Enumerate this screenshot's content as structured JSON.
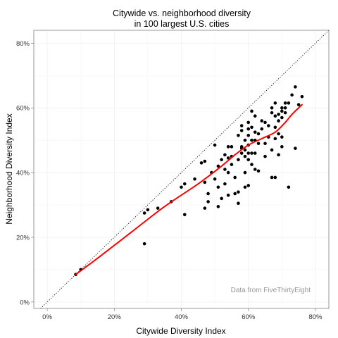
{
  "chart_data": {
    "type": "scatter",
    "title": "Citywide vs. neighborhood diversity",
    "subtitle": "in 100 largest U.S. cities",
    "xlabel": "Citywide Diversity Index",
    "ylabel": "Neighborhood Diversity Index",
    "xlim": [
      -0.04,
      0.84
    ],
    "ylim": [
      -0.02,
      0.84
    ],
    "x_ticks": [
      0,
      0.2,
      0.4,
      0.6,
      0.8
    ],
    "y_ticks": [
      0,
      0.2,
      0.4,
      0.6,
      0.8
    ],
    "x_tick_labels": [
      "0%",
      "20%",
      "40%",
      "60%",
      "80%"
    ],
    "y_tick_labels": [
      "0%",
      "20%",
      "40%",
      "60%",
      "80%"
    ],
    "grid": true,
    "annotation": "Data from FiveThirtyEight",
    "reference_line": {
      "style": "dotted",
      "slope": 1,
      "intercept": 0
    },
    "colors": {
      "points": "#000000",
      "smooth": "#ff0000",
      "reference": "#000000",
      "grid": "#ebebeb",
      "border": "#7f7f7f",
      "annotation": "#999999"
    },
    "points": [
      {
        "x": 0.085,
        "y": 0.085
      },
      {
        "x": 0.1,
        "y": 0.1
      },
      {
        "x": 0.29,
        "y": 0.18
      },
      {
        "x": 0.29,
        "y": 0.275
      },
      {
        "x": 0.3,
        "y": 0.285
      },
      {
        "x": 0.33,
        "y": 0.29
      },
      {
        "x": 0.37,
        "y": 0.31
      },
      {
        "x": 0.4,
        "y": 0.355
      },
      {
        "x": 0.41,
        "y": 0.365
      },
      {
        "x": 0.41,
        "y": 0.27
      },
      {
        "x": 0.44,
        "y": 0.38
      },
      {
        "x": 0.46,
        "y": 0.43
      },
      {
        "x": 0.47,
        "y": 0.435
      },
      {
        "x": 0.47,
        "y": 0.37
      },
      {
        "x": 0.47,
        "y": 0.29
      },
      {
        "x": 0.48,
        "y": 0.31
      },
      {
        "x": 0.48,
        "y": 0.335
      },
      {
        "x": 0.49,
        "y": 0.4
      },
      {
        "x": 0.5,
        "y": 0.485
      },
      {
        "x": 0.5,
        "y": 0.38
      },
      {
        "x": 0.51,
        "y": 0.42
      },
      {
        "x": 0.51,
        "y": 0.355
      },
      {
        "x": 0.51,
        "y": 0.295
      },
      {
        "x": 0.52,
        "y": 0.44
      },
      {
        "x": 0.52,
        "y": 0.32
      },
      {
        "x": 0.53,
        "y": 0.455
      },
      {
        "x": 0.53,
        "y": 0.41
      },
      {
        "x": 0.53,
        "y": 0.365
      },
      {
        "x": 0.54,
        "y": 0.48
      },
      {
        "x": 0.54,
        "y": 0.445
      },
      {
        "x": 0.54,
        "y": 0.4
      },
      {
        "x": 0.54,
        "y": 0.33
      },
      {
        "x": 0.55,
        "y": 0.48
      },
      {
        "x": 0.55,
        "y": 0.45
      },
      {
        "x": 0.55,
        "y": 0.425
      },
      {
        "x": 0.56,
        "y": 0.385
      },
      {
        "x": 0.56,
        "y": 0.335
      },
      {
        "x": 0.57,
        "y": 0.515
      },
      {
        "x": 0.57,
        "y": 0.44
      },
      {
        "x": 0.57,
        "y": 0.34
      },
      {
        "x": 0.57,
        "y": 0.305
      },
      {
        "x": 0.58,
        "y": 0.545
      },
      {
        "x": 0.58,
        "y": 0.53
      },
      {
        "x": 0.58,
        "y": 0.48
      },
      {
        "x": 0.58,
        "y": 0.475
      },
      {
        "x": 0.58,
        "y": 0.46
      },
      {
        "x": 0.59,
        "y": 0.5
      },
      {
        "x": 0.59,
        "y": 0.47
      },
      {
        "x": 0.59,
        "y": 0.45
      },
      {
        "x": 0.59,
        "y": 0.4
      },
      {
        "x": 0.59,
        "y": 0.355
      },
      {
        "x": 0.6,
        "y": 0.555
      },
      {
        "x": 0.6,
        "y": 0.535
      },
      {
        "x": 0.6,
        "y": 0.515
      },
      {
        "x": 0.6,
        "y": 0.485
      },
      {
        "x": 0.6,
        "y": 0.46
      },
      {
        "x": 0.6,
        "y": 0.44
      },
      {
        "x": 0.6,
        "y": 0.36
      },
      {
        "x": 0.61,
        "y": 0.59
      },
      {
        "x": 0.61,
        "y": 0.54
      },
      {
        "x": 0.61,
        "y": 0.5
      },
      {
        "x": 0.61,
        "y": 0.46
      },
      {
        "x": 0.61,
        "y": 0.425
      },
      {
        "x": 0.62,
        "y": 0.575
      },
      {
        "x": 0.62,
        "y": 0.525
      },
      {
        "x": 0.62,
        "y": 0.5
      },
      {
        "x": 0.62,
        "y": 0.46
      },
      {
        "x": 0.62,
        "y": 0.41
      },
      {
        "x": 0.63,
        "y": 0.52
      },
      {
        "x": 0.63,
        "y": 0.49
      },
      {
        "x": 0.63,
        "y": 0.405
      },
      {
        "x": 0.64,
        "y": 0.56
      },
      {
        "x": 0.64,
        "y": 0.535
      },
      {
        "x": 0.65,
        "y": 0.555
      },
      {
        "x": 0.65,
        "y": 0.49
      },
      {
        "x": 0.65,
        "y": 0.45
      },
      {
        "x": 0.66,
        "y": 0.545
      },
      {
        "x": 0.66,
        "y": 0.51
      },
      {
        "x": 0.67,
        "y": 0.6
      },
      {
        "x": 0.67,
        "y": 0.585
      },
      {
        "x": 0.67,
        "y": 0.47
      },
      {
        "x": 0.67,
        "y": 0.385
      },
      {
        "x": 0.68,
        "y": 0.615
      },
      {
        "x": 0.68,
        "y": 0.575
      },
      {
        "x": 0.68,
        "y": 0.54
      },
      {
        "x": 0.68,
        "y": 0.505
      },
      {
        "x": 0.68,
        "y": 0.385
      },
      {
        "x": 0.69,
        "y": 0.58
      },
      {
        "x": 0.69,
        "y": 0.56
      },
      {
        "x": 0.69,
        "y": 0.52
      },
      {
        "x": 0.69,
        "y": 0.455
      },
      {
        "x": 0.7,
        "y": 0.6
      },
      {
        "x": 0.7,
        "y": 0.59
      },
      {
        "x": 0.7,
        "y": 0.57
      },
      {
        "x": 0.7,
        "y": 0.51
      },
      {
        "x": 0.7,
        "y": 0.48
      },
      {
        "x": 0.71,
        "y": 0.615
      },
      {
        "x": 0.71,
        "y": 0.6
      },
      {
        "x": 0.71,
        "y": 0.585
      },
      {
        "x": 0.72,
        "y": 0.615
      },
      {
        "x": 0.72,
        "y": 0.355
      },
      {
        "x": 0.73,
        "y": 0.64
      },
      {
        "x": 0.74,
        "y": 0.665
      },
      {
        "x": 0.74,
        "y": 0.475
      },
      {
        "x": 0.75,
        "y": 0.61
      },
      {
        "x": 0.76,
        "y": 0.635
      }
    ],
    "smooth_line": [
      {
        "x": 0.085,
        "y": 0.085
      },
      {
        "x": 0.15,
        "y": 0.135
      },
      {
        "x": 0.25,
        "y": 0.215
      },
      {
        "x": 0.35,
        "y": 0.295
      },
      {
        "x": 0.45,
        "y": 0.365
      },
      {
        "x": 0.52,
        "y": 0.42
      },
      {
        "x": 0.56,
        "y": 0.455
      },
      {
        "x": 0.6,
        "y": 0.485
      },
      {
        "x": 0.64,
        "y": 0.505
      },
      {
        "x": 0.68,
        "y": 0.525
      },
      {
        "x": 0.71,
        "y": 0.555
      },
      {
        "x": 0.73,
        "y": 0.58
      },
      {
        "x": 0.76,
        "y": 0.61
      }
    ]
  }
}
